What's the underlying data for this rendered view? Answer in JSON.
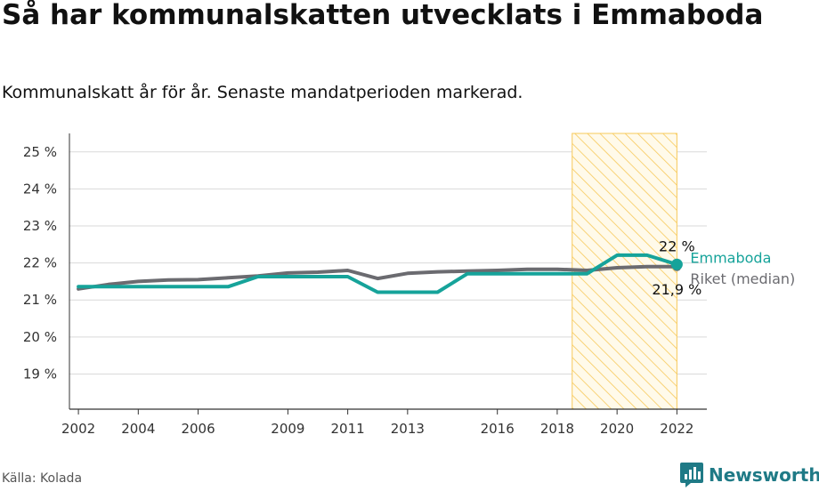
{
  "header": {
    "title": "Så har kommunalskatten utvecklats i Emmaboda",
    "subtitle": "Kommunalskatt år för år. Senaste mandatperioden markerad."
  },
  "footer": {
    "source": "Källa: Kolada",
    "brand": "Newsworthy"
  },
  "colors": {
    "emmaboda": "#16a39a",
    "riket": "#6b6b70",
    "highlight_stroke": "#f7c95a",
    "grid": "#d9d9d9",
    "brand": "#1f7a86"
  },
  "chart_data": {
    "type": "line",
    "title": "Så har kommunalskatten utvecklats i Emmaboda",
    "xlabel": "",
    "ylabel": "",
    "xlim": [
      2001.7,
      2023.0
    ],
    "ylim": [
      18.05,
      25.5
    ],
    "x_ticks": [
      2002,
      2004,
      2006,
      2009,
      2011,
      2013,
      2016,
      2018,
      2020,
      2022
    ],
    "y_ticks": [
      19,
      20,
      21,
      22,
      23,
      24,
      25
    ],
    "y_tick_labels": [
      "19 %",
      "20 %",
      "21 %",
      "22 %",
      "23 %",
      "24 %",
      "25 %"
    ],
    "highlight": {
      "from": 2018.5,
      "to": 2022,
      "label": "Senaste mandatperioden"
    },
    "x": [
      2002,
      2003,
      2004,
      2005,
      2006,
      2007,
      2008,
      2009,
      2010,
      2011,
      2012,
      2013,
      2014,
      2015,
      2016,
      2017,
      2018,
      2019,
      2020,
      2021,
      2022
    ],
    "series": [
      {
        "name": "Riket (median)",
        "color": "#6b6b70",
        "values": [
          21.3,
          21.42,
          21.5,
          21.54,
          21.55,
          21.6,
          21.65,
          21.73,
          21.75,
          21.8,
          21.58,
          21.72,
          21.76,
          21.78,
          21.8,
          21.83,
          21.83,
          21.8,
          21.87,
          21.9,
          21.9
        ],
        "end_label": "21,9 %"
      },
      {
        "name": "Emmaboda",
        "color": "#16a39a",
        "values": [
          21.36,
          21.36,
          21.36,
          21.36,
          21.36,
          21.36,
          21.63,
          21.63,
          21.63,
          21.63,
          21.21,
          21.21,
          21.21,
          21.71,
          21.71,
          21.71,
          21.71,
          21.71,
          22.21,
          22.21,
          21.96
        ],
        "end_label": "22 %"
      }
    ]
  }
}
